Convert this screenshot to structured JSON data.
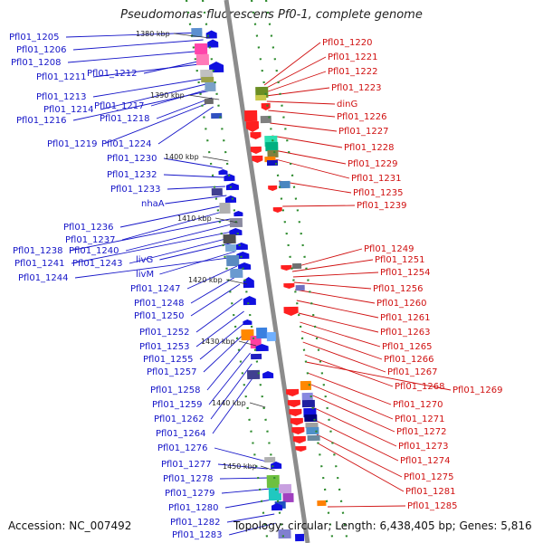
{
  "title": "Pseudomonas fluorescens Pf0-1, complete genome",
  "accession": "Accession: NC_007492",
  "topology": "Topology: circular; Length: 6,438,405 bp; Genes: 5,816",
  "colors": {
    "left_labels": "#1515c8",
    "right_labels": "#d01010",
    "backbone": "#8c8c8c",
    "tick": "#2e8b2e"
  },
  "kbp_labels": [
    "1380 kbp",
    "1390 kbp",
    "1400 kbp",
    "1410 kbp",
    "1420 kbp",
    "1430 kbp",
    "1440 kbp",
    "1450 kbp"
  ],
  "left_labels": [
    "Pfl01_1205",
    "Pfl01_1206",
    "Pfl01_1208",
    "Pfl01_1211",
    "Pfl01_1212",
    "Pfl01_1213",
    "Pfl01_1214",
    "Pfl01_1217",
    "Pfl01_1216",
    "Pfl01_1218",
    "Pfl01_1219",
    "Pfl01_1224",
    "Pfl01_1230",
    "Pfl01_1232",
    "Pfl01_1233",
    "nhaA",
    "Pfl01_1236",
    "Pfl01_1237",
    "Pfl01_1238",
    "Pfl01_1240",
    "Pfl01_1241",
    "Pfl01_1243",
    "livG",
    "livM",
    "Pfl01_1244",
    "Pfl01_1247",
    "Pfl01_1248",
    "Pfl01_1250",
    "Pfl01_1252",
    "Pfl01_1253",
    "Pfl01_1255",
    "Pfl01_1257",
    "Pfl01_1258",
    "Pfl01_1259",
    "Pfl01_1262",
    "Pfl01_1264",
    "Pfl01_1276",
    "Pfl01_1277",
    "Pfl01_1278",
    "Pfl01_1279",
    "Pfl01_1280",
    "Pfl01_1282",
    "Pfl01_1283"
  ],
  "right_labels": [
    "Pfl01_1220",
    "Pfl01_1221",
    "Pfl01_1222",
    "Pfl01_1223",
    "dinG",
    "Pfl01_1226",
    "Pfl01_1227",
    "Pfl01_1228",
    "Pfl01_1229",
    "Pfl01_1231",
    "Pfl01_1235",
    "Pfl01_1239",
    "Pfl01_1249",
    "Pfl01_1251",
    "Pfl01_1254",
    "Pfl01_1256",
    "Pfl01_1260",
    "Pfl01_1261",
    "Pfl01_1263",
    "Pfl01_1265",
    "Pfl01_1266",
    "Pfl01_1267",
    "Pfl01_1268",
    "Pfl01_1269",
    "Pfl01_1270",
    "Pfl01_1271",
    "Pfl01_1272",
    "Pfl01_1273",
    "Pfl01_1274",
    "Pfl01_1275",
    "Pfl01_1281",
    "Pfl01_1285"
  ]
}
